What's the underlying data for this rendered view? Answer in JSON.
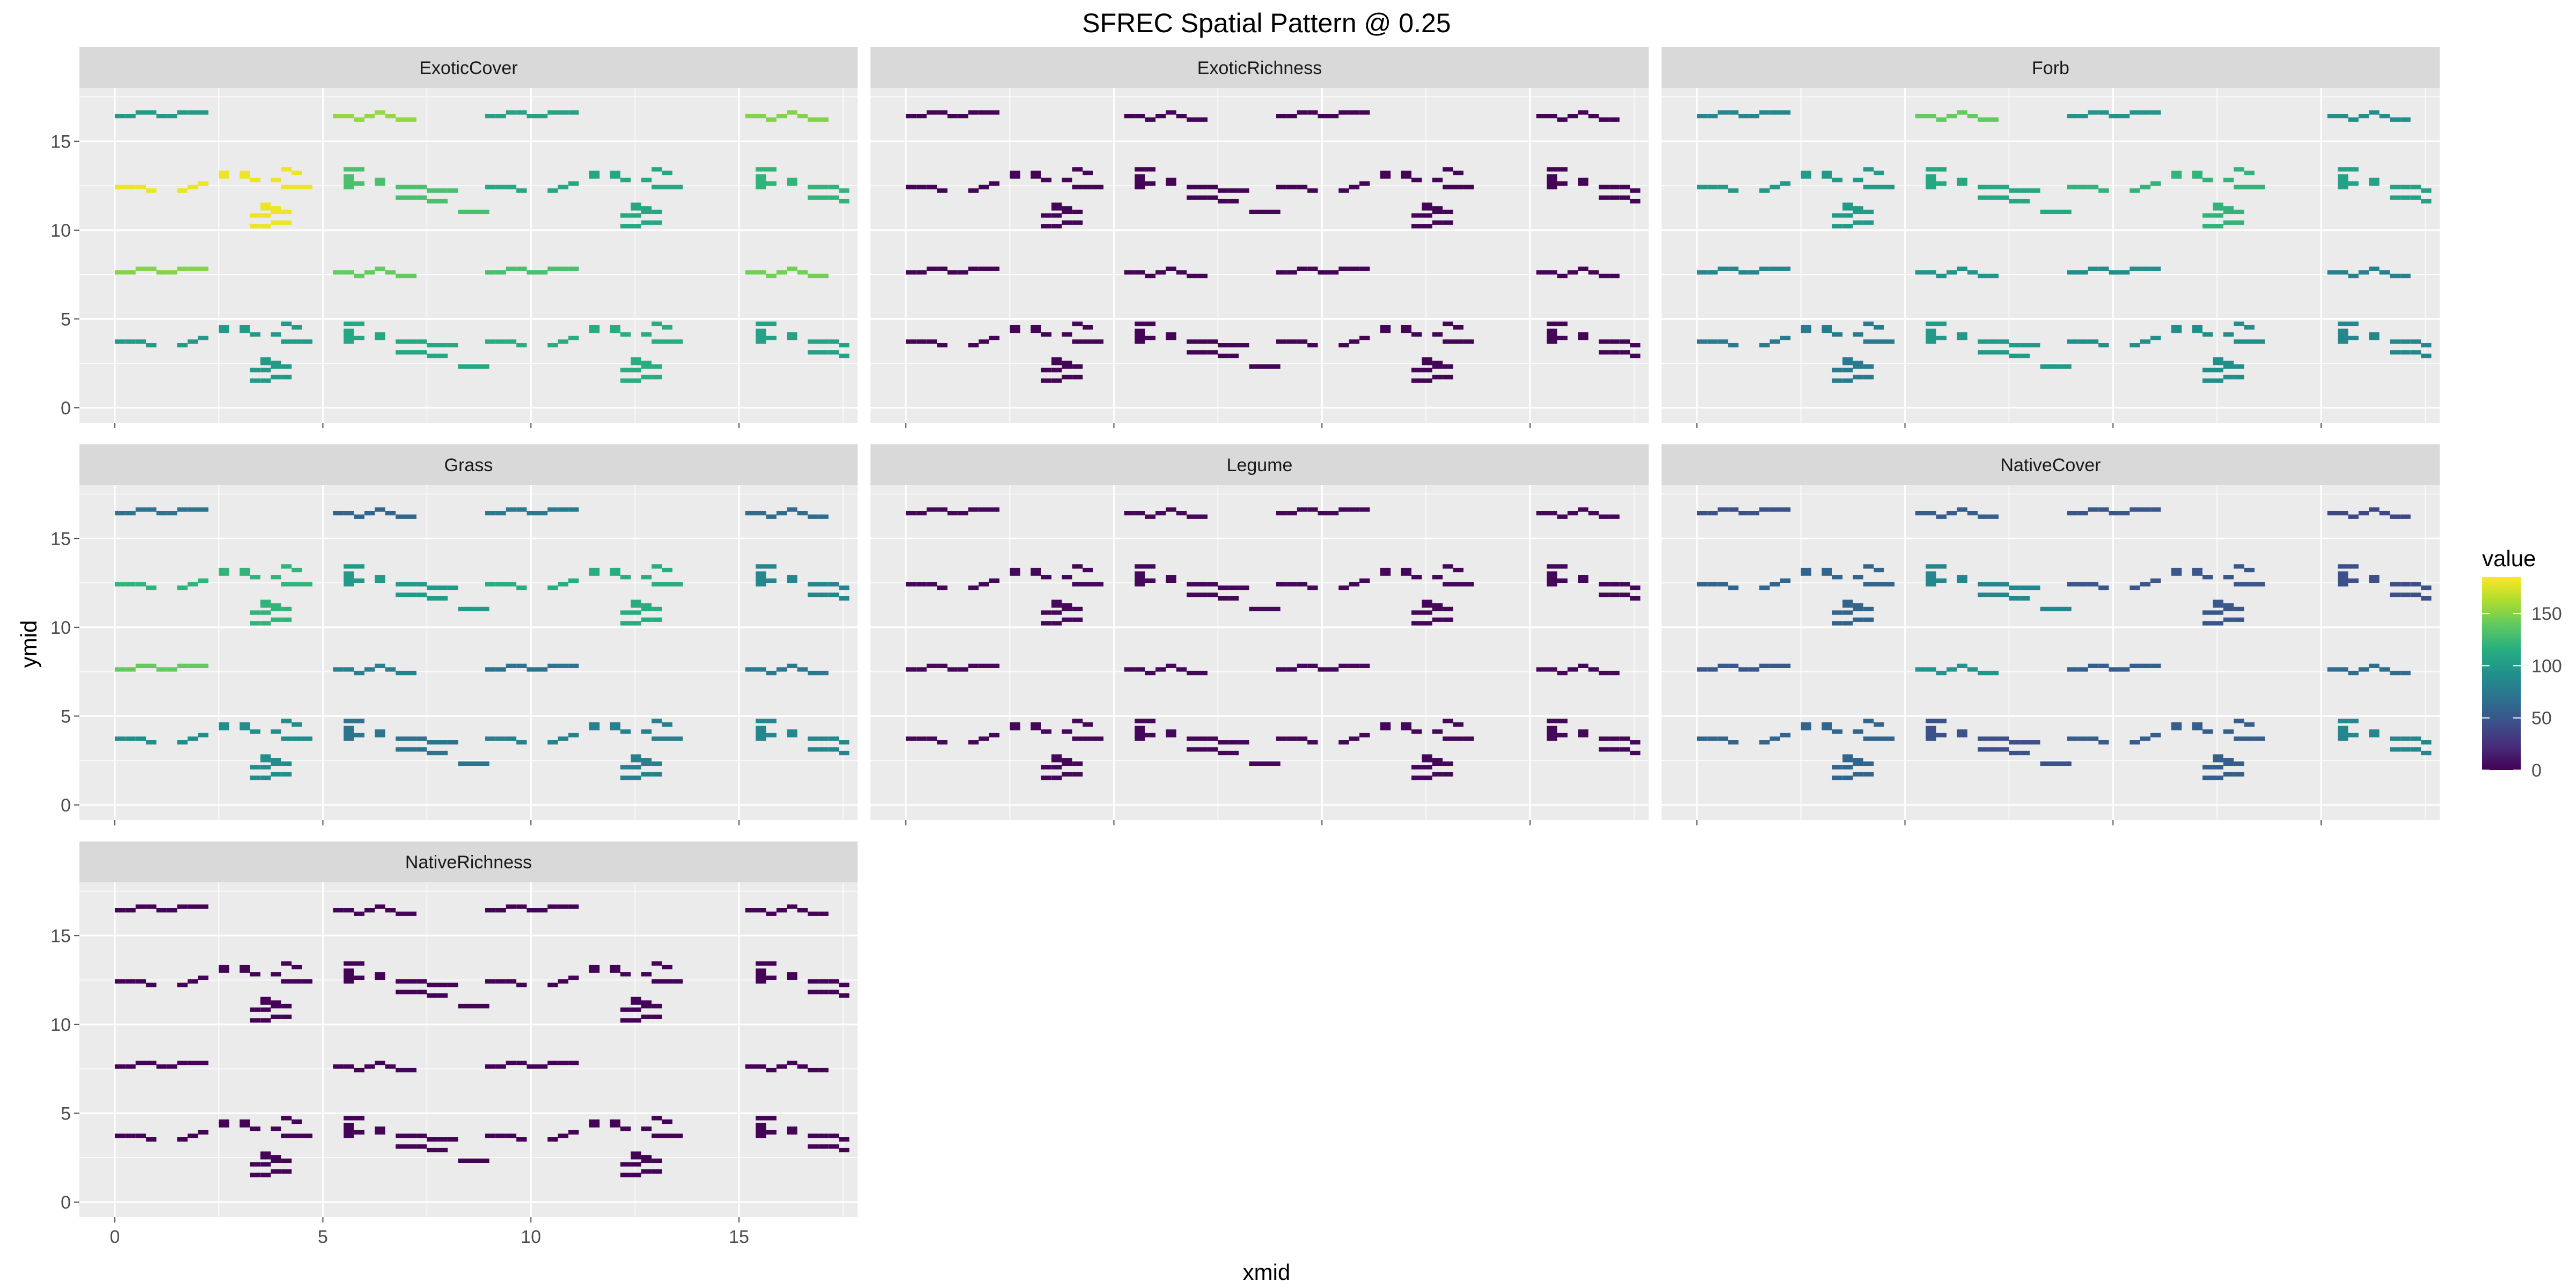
{
  "chart_data": {
    "type": "heatmap",
    "title": "SFREC Spatial Pattern @ 0.25",
    "xlabel": "xmid",
    "ylabel": "ymid",
    "xlim": [
      -0.85,
      17.85
    ],
    "ylim": [
      -0.85,
      18.0
    ],
    "x_ticks": [
      0,
      5,
      10,
      15
    ],
    "y_ticks": [
      0,
      5,
      10,
      15
    ],
    "grid": true,
    "colorscale": "viridis",
    "legend": {
      "title": "value",
      "position": "right",
      "range": [
        0,
        185
      ],
      "ticks": [
        0,
        50,
        100,
        150
      ],
      "colors": [
        "#440154",
        "#472d7b",
        "#3b528b",
        "#2c728e",
        "#21918c",
        "#28ae80",
        "#5ec962",
        "#addc30",
        "#fde725"
      ]
    },
    "layout": {
      "columns": 3,
      "rows": 3,
      "cell_width": 0.25,
      "cell_height": 0.25
    },
    "cells_note": "",
    "site_origins": [
      [
        0,
        15.5
      ],
      [
        5.0,
        15.5
      ],
      [
        8.9,
        15.5
      ],
      [
        14.9,
        15.5
      ],
      [
        0,
        11.3
      ],
      [
        5.0,
        11.3
      ],
      [
        8.9,
        11.3
      ],
      [
        14.9,
        11.3
      ],
      [
        0,
        6.7
      ],
      [
        5.0,
        6.7
      ],
      [
        8.9,
        6.7
      ],
      [
        14.9,
        6.7
      ],
      [
        0,
        2.6
      ],
      [
        5.0,
        2.6
      ],
      [
        8.9,
        2.6
      ],
      [
        14.9,
        2.6
      ]
    ],
    "site_layouts": [
      "A",
      "B",
      "A",
      "B",
      "C",
      "D",
      "C",
      "D",
      "A",
      "B",
      "A",
      "B",
      "C",
      "D",
      "C",
      "D"
    ],
    "patterns": {
      "A": [
        [
          0,
          0.8
        ],
        [
          0.25,
          0.8
        ],
        [
          0.5,
          1.0
        ],
        [
          0.75,
          1.0
        ],
        [
          1.0,
          0.8
        ],
        [
          1.25,
          0.8
        ],
        [
          1.5,
          1.0
        ],
        [
          1.75,
          1.0
        ],
        [
          2.0,
          1.0
        ]
      ],
      "B": [
        [
          0.25,
          0.8
        ],
        [
          0.5,
          0.8
        ],
        [
          0.75,
          0.6
        ],
        [
          1.0,
          0.8
        ],
        [
          1.25,
          1.0
        ],
        [
          1.5,
          0.8
        ],
        [
          1.75,
          0.6
        ],
        [
          2.0,
          0.6
        ]
      ],
      "C": [
        [
          0,
          1.0
        ],
        [
          0.25,
          1.0
        ],
        [
          0.5,
          1.0
        ],
        [
          0.75,
          0.8
        ],
        [
          1.5,
          0.8
        ],
        [
          1.75,
          1.0
        ],
        [
          2.0,
          1.2
        ],
        [
          2.5,
          1.6
        ],
        [
          2.5,
          1.8
        ],
        [
          3.0,
          1.6
        ],
        [
          3.0,
          1.8
        ],
        [
          3.25,
          1.4
        ],
        [
          3.75,
          1.4
        ],
        [
          4.0,
          2.0
        ],
        [
          4.25,
          1.8
        ],
        [
          4.25,
          1.0
        ],
        [
          4.5,
          1.0
        ],
        [
          4.0,
          1.0
        ],
        [
          3.5,
          0.0
        ],
        [
          3.5,
          -0.2
        ],
        [
          3.75,
          -0.2
        ],
        [
          3.25,
          -0.6
        ],
        [
          3.5,
          -0.6
        ],
        [
          3.75,
          -0.4
        ],
        [
          4.0,
          -0.4
        ],
        [
          3.25,
          -1.2
        ],
        [
          3.5,
          -1.2
        ],
        [
          3.75,
          -1.0
        ],
        [
          4.0,
          -1.0
        ]
      ],
      "D": [
        [
          0.5,
          2.0
        ],
        [
          0.75,
          2.0
        ],
        [
          0.5,
          1.6
        ],
        [
          0.5,
          1.4
        ],
        [
          0.5,
          1.2
        ],
        [
          0.5,
          1.0
        ],
        [
          0.75,
          1.2
        ],
        [
          1.25,
          1.2
        ],
        [
          1.25,
          1.4
        ],
        [
          1.75,
          1.0
        ],
        [
          2.0,
          1.0
        ],
        [
          2.25,
          1.0
        ],
        [
          2.5,
          0.8
        ],
        [
          2.75,
          0.8
        ],
        [
          3.0,
          0.8
        ],
        [
          1.75,
          0.4
        ],
        [
          2.0,
          0.4
        ],
        [
          2.25,
          0.4
        ],
        [
          2.5,
          0.2
        ],
        [
          2.75,
          0.2
        ],
        [
          3.25,
          -0.4
        ],
        [
          3.5,
          -0.4
        ],
        [
          3.75,
          -0.4
        ]
      ]
    },
    "facets": [
      {
        "name": "ExoticCover",
        "value_by_site": [
          100,
          155,
          105,
          150,
          180,
          130,
          110,
          120,
          150,
          140,
          130,
          145,
          100,
          110,
          115,
          105
        ]
      },
      {
        "name": "ExoticRichness",
        "value_by_site": [
          2,
          2,
          2,
          2,
          2,
          2,
          2,
          2,
          2,
          2,
          2,
          2,
          2,
          2,
          2,
          2
        ]
      },
      {
        "name": "Forb",
        "value_by_site": [
          85,
          140,
          95,
          90,
          100,
          110,
          120,
          105,
          85,
          95,
          90,
          80,
          75,
          100,
          90,
          85
        ]
      },
      {
        "name": "Grass",
        "value_by_site": [
          70,
          60,
          75,
          65,
          120,
          100,
          115,
          85,
          140,
          80,
          70,
          75,
          90,
          70,
          80,
          85
        ]
      },
      {
        "name": "Legume",
        "value_by_site": [
          3,
          3,
          3,
          3,
          3,
          3,
          3,
          3,
          3,
          3,
          3,
          3,
          3,
          3,
          3,
          3
        ]
      },
      {
        "name": "NativeCover",
        "value_by_site": [
          45,
          55,
          50,
          40,
          60,
          85,
          50,
          45,
          50,
          95,
          55,
          65,
          60,
          45,
          55,
          85
        ]
      },
      {
        "name": "NativeRichness",
        "value_by_site": [
          1,
          1,
          1,
          1,
          1,
          1,
          1,
          1,
          1,
          1,
          1,
          1,
          1,
          1,
          1,
          1
        ]
      }
    ]
  }
}
